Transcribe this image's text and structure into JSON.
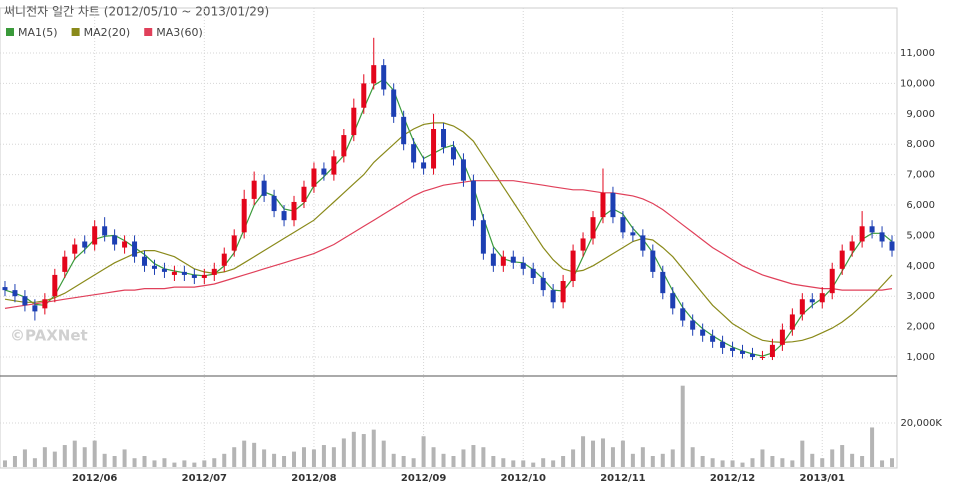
{
  "chart_data": {
    "type": "candlestick",
    "title": "써니전자 일간 차트 (2012/05/10 ~ 2013/01/29)",
    "watermark": "©PAXNet",
    "up_color": "#e3051b",
    "down_color": "#1d3fb3",
    "grid": true,
    "legend": "top-left",
    "categories": [
      null,
      null,
      null,
      null,
      null,
      null,
      null,
      null,
      null,
      "2012/06",
      null,
      null,
      null,
      null,
      null,
      null,
      null,
      null,
      null,
      null,
      "2012/07",
      null,
      null,
      null,
      null,
      null,
      null,
      null,
      null,
      null,
      null,
      "2012/08",
      null,
      null,
      null,
      null,
      null,
      null,
      null,
      null,
      null,
      null,
      "2012/09",
      null,
      null,
      null,
      null,
      null,
      null,
      null,
      null,
      null,
      "2012/10",
      null,
      null,
      null,
      null,
      null,
      null,
      null,
      null,
      null,
      "2012/11",
      null,
      null,
      null,
      null,
      null,
      null,
      null,
      null,
      null,
      null,
      "2012/12",
      null,
      null,
      null,
      null,
      null,
      null,
      null,
      null,
      "2013/01",
      null,
      null,
      null,
      null,
      null,
      null,
      null
    ],
    "open": [
      3300,
      3200,
      3000,
      2700,
      2600,
      3000,
      3800,
      4400,
      4800,
      4700,
      5300,
      5000,
      4600,
      4800,
      4300,
      4000,
      3900,
      3700,
      3800,
      3700,
      3600,
      3700,
      4000,
      4500,
      5100,
      6200,
      6800,
      6300,
      5800,
      5500,
      6100,
      6600,
      7200,
      7000,
      7600,
      8300,
      9200,
      10000,
      10600,
      9800,
      8900,
      8000,
      7400,
      7200,
      8500,
      7900,
      7500,
      6800,
      5500,
      4400,
      4000,
      4300,
      4100,
      3900,
      3600,
      3200,
      2800,
      3500,
      4500,
      4900,
      5600,
      6400,
      5600,
      5100,
      5000,
      4500,
      3800,
      3100,
      2600,
      2200,
      1900,
      1700,
      1500,
      1300,
      1200,
      1100,
      1000,
      1000,
      1400,
      1900,
      2400,
      2900,
      2800,
      3100,
      3900,
      4500,
      4800,
      5300,
      5100,
      4800
    ],
    "high": [
      3500,
      3400,
      3200,
      2900,
      3100,
      3900,
      4500,
      4900,
      5000,
      5500,
      5600,
      5200,
      5000,
      5000,
      4500,
      4200,
      4100,
      4000,
      4000,
      3900,
      3900,
      4100,
      4600,
      5200,
      6500,
      7100,
      7000,
      6500,
      6000,
      6300,
      6800,
      7400,
      7400,
      7800,
      8500,
      9500,
      10300,
      11500,
      10800,
      10000,
      9100,
      8200,
      7600,
      9000,
      8700,
      8100,
      7700,
      7000,
      5700,
      4600,
      4500,
      4500,
      4300,
      4100,
      3800,
      3400,
      3700,
      4700,
      5100,
      5800,
      7200,
      6600,
      5800,
      5300,
      5200,
      4700,
      4000,
      3300,
      2800,
      2400,
      2100,
      1900,
      1700,
      1500,
      1400,
      1300,
      1200,
      1600,
      2100,
      2600,
      3100,
      3100,
      3300,
      4100,
      4700,
      5000,
      5800,
      5500,
      5300,
      5000
    ],
    "low": [
      3000,
      2800,
      2500,
      2200,
      2400,
      2800,
      3600,
      4200,
      4400,
      4500,
      4800,
      4500,
      4400,
      4100,
      3800,
      3700,
      3600,
      3500,
      3500,
      3400,
      3400,
      3500,
      3800,
      4300,
      4900,
      6000,
      6100,
      5600,
      5300,
      5300,
      5900,
      6400,
      6800,
      6800,
      7400,
      8100,
      9000,
      9800,
      9600,
      8700,
      7800,
      7200,
      7000,
      7000,
      7700,
      7300,
      6600,
      5300,
      4200,
      3800,
      3800,
      3900,
      3700,
      3400,
      3000,
      2600,
      2600,
      3300,
      4300,
      4700,
      5400,
      5400,
      4900,
      4800,
      4300,
      3600,
      2900,
      2400,
      2000,
      1700,
      1500,
      1300,
      1100,
      1000,
      950,
      900,
      900,
      900,
      1200,
      1700,
      2200,
      2600,
      2600,
      2900,
      3700,
      4300,
      4600,
      4900,
      4600,
      4300
    ],
    "close": [
      3200,
      3000,
      2700,
      2500,
      2900,
      3700,
      4300,
      4700,
      4600,
      5300,
      5000,
      4700,
      4800,
      4300,
      4000,
      3900,
      3800,
      3800,
      3700,
      3600,
      3700,
      3900,
      4400,
      5000,
      6200,
      6800,
      6300,
      5800,
      5500,
      6100,
      6600,
      7200,
      7000,
      7600,
      8300,
      9200,
      10000,
      10600,
      9800,
      8900,
      8000,
      7400,
      7200,
      8500,
      7900,
      7500,
      6800,
      5500,
      4400,
      4000,
      4300,
      4100,
      3900,
      3600,
      3200,
      2800,
      3500,
      4500,
      4900,
      5600,
      6400,
      5600,
      5100,
      5000,
      4500,
      3800,
      3100,
      2600,
      2200,
      1900,
      1700,
      1500,
      1300,
      1200,
      1100,
      1000,
      1000,
      1400,
      1900,
      2400,
      2900,
      2800,
      3100,
      3900,
      4500,
      4800,
      5300,
      5100,
      4800,
      4500
    ],
    "series": [
      {
        "name": "MA1(5)",
        "color": "#3a9a3a",
        "values": [
          3200,
          3100,
          2970,
          2730,
          2700,
          3030,
          3630,
          4230,
          4530,
          4870,
          4970,
          5000,
          4830,
          4600,
          4370,
          4070,
          3900,
          3830,
          3770,
          3700,
          3670,
          3730,
          4000,
          4430,
          5200,
          6000,
          6430,
          6300,
          5870,
          5800,
          6070,
          6630,
          6930,
          7270,
          7630,
          8370,
          9170,
          9930,
          10130,
          9770,
          8900,
          8100,
          7530,
          7700,
          7870,
          7970,
          7400,
          6600,
          5570,
          4630,
          4230,
          4130,
          4100,
          3870,
          3570,
          3200,
          3170,
          3600,
          4300,
          5000,
          5630,
          5870,
          5700,
          5230,
          4870,
          4430,
          3800,
          3170,
          2630,
          2230,
          1930,
          1700,
          1500,
          1330,
          1200,
          1100,
          1030,
          1130,
          1430,
          1900,
          2400,
          2700,
          2930,
          3270,
          3830,
          4400,
          4870,
          5070,
          5070,
          4800
        ]
      },
      {
        "name": "MA2(20)",
        "color": "#8a8a1a",
        "values": [
          2900,
          2850,
          2800,
          2800,
          2850,
          2950,
          3100,
          3300,
          3500,
          3700,
          3900,
          4100,
          4250,
          4400,
          4500,
          4500,
          4400,
          4300,
          4100,
          3900,
          3800,
          3750,
          3800,
          3900,
          4100,
          4300,
          4500,
          4700,
          4900,
          5100,
          5300,
          5500,
          5800,
          6100,
          6400,
          6700,
          7000,
          7400,
          7700,
          8000,
          8300,
          8500,
          8650,
          8700,
          8700,
          8600,
          8400,
          8100,
          7600,
          7100,
          6600,
          6100,
          5600,
          5100,
          4600,
          4200,
          3900,
          3800,
          3850,
          4000,
          4200,
          4400,
          4600,
          4800,
          4900,
          4850,
          4600,
          4300,
          3900,
          3500,
          3100,
          2700,
          2400,
          2100,
          1900,
          1700,
          1550,
          1500,
          1480,
          1500,
          1550,
          1650,
          1800,
          1950,
          2150,
          2400,
          2700,
          3000,
          3350,
          3700
        ]
      },
      {
        "name": "MA3(60)",
        "color": "#e0405a",
        "values": [
          2600,
          2650,
          2700,
          2750,
          2800,
          2850,
          2900,
          2950,
          3000,
          3050,
          3100,
          3150,
          3200,
          3200,
          3250,
          3250,
          3250,
          3300,
          3300,
          3300,
          3350,
          3400,
          3500,
          3600,
          3700,
          3800,
          3900,
          4000,
          4100,
          4200,
          4300,
          4400,
          4550,
          4700,
          4900,
          5100,
          5300,
          5500,
          5700,
          5900,
          6100,
          6300,
          6450,
          6550,
          6650,
          6700,
          6750,
          6800,
          6800,
          6800,
          6800,
          6800,
          6750,
          6700,
          6650,
          6600,
          6550,
          6500,
          6500,
          6450,
          6400,
          6400,
          6350,
          6300,
          6200,
          6050,
          5850,
          5600,
          5350,
          5100,
          4850,
          4600,
          4400,
          4200,
          4000,
          3850,
          3700,
          3600,
          3500,
          3400,
          3350,
          3300,
          3250,
          3250,
          3200,
          3200,
          3200,
          3200,
          3200,
          3250
        ]
      }
    ],
    "ylim": [
      375,
      12480
    ],
    "yticks": [
      {
        "value": 1000,
        "label": "1,000"
      },
      {
        "value": 2000,
        "label": "2,000"
      },
      {
        "value": 3000,
        "label": "3,000"
      },
      {
        "value": 4000,
        "label": "4,000"
      },
      {
        "value": 5000,
        "label": "5,000"
      },
      {
        "value": 6000,
        "label": "6,000"
      },
      {
        "value": 7000,
        "label": "7,000"
      },
      {
        "value": 8000,
        "label": "8,000"
      },
      {
        "value": 9000,
        "label": "9,000"
      },
      {
        "value": 10000,
        "label": "10,000"
      },
      {
        "value": 11000,
        "label": "11,000"
      }
    ],
    "volume": {
      "color": "#b4b4b4",
      "values": [
        3000,
        5000,
        8000,
        4000,
        9000,
        7000,
        10000,
        12000,
        9000,
        12000,
        6000,
        5000,
        8000,
        4000,
        5000,
        3000,
        4000,
        2000,
        3000,
        2000,
        3000,
        4000,
        6000,
        9000,
        12000,
        11000,
        8000,
        6000,
        5000,
        7000,
        9000,
        8000,
        10000,
        9000,
        13000,
        16000,
        15000,
        17000,
        12000,
        6000,
        5000,
        4000,
        14000,
        9000,
        6000,
        5000,
        8000,
        10000,
        9000,
        5000,
        4000,
        3000,
        3000,
        2000,
        4000,
        3000,
        5000,
        8000,
        14000,
        12000,
        13000,
        9000,
        12000,
        6000,
        9000,
        5000,
        6000,
        8000,
        37000,
        9000,
        5000,
        4000,
        3000,
        3000,
        2000,
        4000,
        8000,
        5000,
        4000,
        3000,
        12000,
        6000,
        4000,
        8000,
        10000,
        6000,
        5000,
        18000,
        3000,
        4000
      ],
      "ylim": [
        0,
        40500
      ],
      "yticks": [
        {
          "value": 20000,
          "label": "20,000K"
        }
      ]
    }
  }
}
